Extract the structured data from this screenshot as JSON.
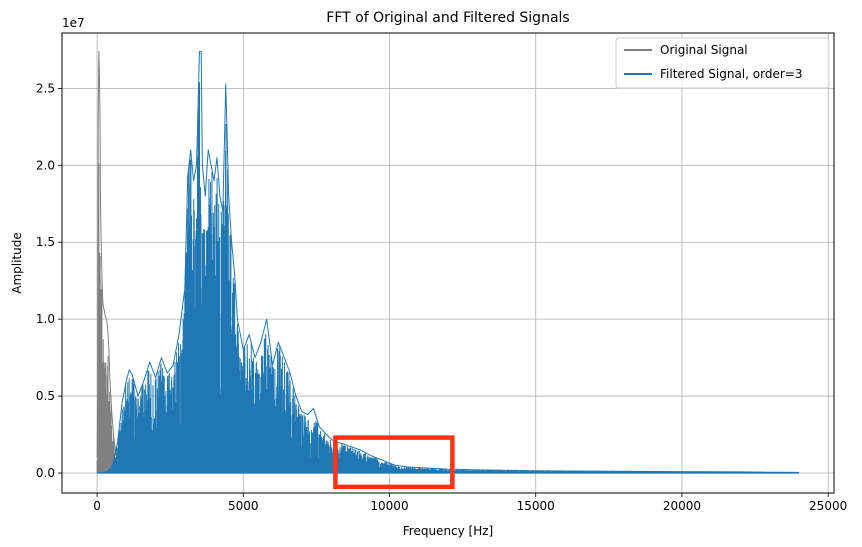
{
  "chart_data": {
    "type": "line",
    "title": "FFT of Original and Filtered Signals",
    "xlabel": "Frequency [Hz]",
    "ylabel": "Amplitude",
    "y_offset_label": "1e7",
    "xlim": [
      -1200,
      25200
    ],
    "ylim": [
      -0.13,
      2.86
    ],
    "x_ticks": [
      0,
      5000,
      10000,
      15000,
      20000,
      25000
    ],
    "x_tick_labels": [
      "0",
      "5000",
      "10000",
      "15000",
      "20000",
      "25000"
    ],
    "y_ticks": [
      0.0,
      0.5,
      1.0,
      1.5,
      2.0,
      2.5
    ],
    "y_tick_labels": [
      "0.0",
      "0.5",
      "1.0",
      "1.5",
      "2.0",
      "2.5"
    ],
    "grid": true,
    "legend_position": "top-right",
    "series": [
      {
        "name": "Original Signal",
        "color": "#808080",
        "envelope_x": [
          0,
          20,
          40,
          60,
          80,
          100,
          120,
          140,
          170,
          200,
          240,
          280,
          320,
          360,
          400,
          440,
          500,
          560,
          640,
          800,
          1000,
          1500,
          2000,
          3000,
          4000,
          5000,
          6000,
          7000,
          8000,
          9000,
          10000,
          12000,
          15000,
          20000,
          24000
        ],
        "envelope_y": [
          0.1,
          0.5,
          2.35,
          2.74,
          2.6,
          2.3,
          1.7,
          1.5,
          1.25,
          1.1,
          1.06,
          1.02,
          1.0,
          0.95,
          0.82,
          0.6,
          0.4,
          0.25,
          0.12,
          0.05,
          0.03,
          0.02,
          0.015,
          0.015,
          0.013,
          0.012,
          0.012,
          0.012,
          0.012,
          0.01,
          0.01,
          0.008,
          0.006,
          0.004,
          0.003
        ]
      },
      {
        "name": "Filtered Signal, order=3",
        "color": "#1f77b4",
        "envelope_x": [
          0,
          200,
          350,
          450,
          550,
          700,
          850,
          1000,
          1100,
          1200,
          1400,
          1600,
          1800,
          2000,
          2200,
          2400,
          2600,
          2800,
          3000,
          3100,
          3200,
          3300,
          3400,
          3500,
          3560,
          3600,
          3700,
          3800,
          3900,
          4000,
          4100,
          4200,
          4300,
          4400,
          4500,
          4600,
          4700,
          4800,
          4900,
          5000,
          5200,
          5400,
          5600,
          5800,
          6000,
          6200,
          6400,
          6600,
          6800,
          7000,
          7200,
          7400,
          7600,
          7800,
          8000,
          8200,
          8400,
          8700,
          9000,
          9400,
          9800,
          10200,
          10600,
          11000,
          11500,
          12000,
          13000,
          14000,
          15000,
          16000,
          17000,
          18000,
          19000,
          20000,
          21000,
          22000,
          23000,
          24000
        ],
        "envelope_y": [
          0.0,
          0.005,
          0.01,
          0.03,
          0.06,
          0.2,
          0.45,
          0.6,
          0.67,
          0.64,
          0.5,
          0.6,
          0.72,
          0.62,
          0.75,
          0.65,
          0.7,
          0.9,
          1.2,
          1.93,
          2.1,
          1.9,
          2.0,
          2.74,
          2.74,
          2.0,
          1.8,
          2.1,
          2.0,
          1.9,
          2.05,
          1.8,
          1.7,
          2.53,
          1.8,
          1.5,
          1.3,
          1.0,
          0.9,
          0.8,
          0.9,
          0.75,
          0.85,
          1.0,
          0.7,
          0.85,
          0.75,
          0.65,
          0.5,
          0.4,
          0.38,
          0.42,
          0.3,
          0.26,
          0.22,
          0.2,
          0.19,
          0.17,
          0.15,
          0.11,
          0.08,
          0.05,
          0.04,
          0.035,
          0.03,
          0.025,
          0.02,
          0.018,
          0.015,
          0.013,
          0.012,
          0.011,
          0.01,
          0.009,
          0.008,
          0.007,
          0.005,
          0.004
        ]
      }
    ]
  },
  "annotation": {
    "type": "highlight-box",
    "color": "#ff3311",
    "x_range": [
      8150,
      12150
    ],
    "y_range": [
      -0.09,
      0.23
    ]
  }
}
